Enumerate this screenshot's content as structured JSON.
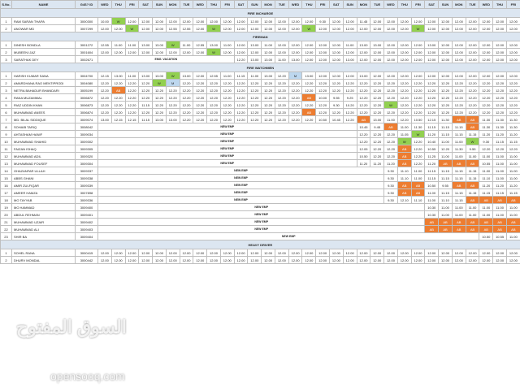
{
  "header": {
    "sno": "S.No.",
    "name": "NAME",
    "id": "G4S? ID",
    "days": [
      "WED",
      "THU",
      "FRI",
      "SAT",
      "SUN",
      "MON",
      "TUE",
      "WED",
      "THU",
      "FRI",
      "SAT",
      "SUN",
      "MON",
      "TUE",
      "WED",
      "THU",
      "FRI",
      "SAT",
      "SUN",
      "MON",
      "TUE",
      "WED",
      "THU",
      "FRI",
      "SAT",
      "SUN",
      "MON",
      "TUE",
      "WED",
      "THU",
      "FRI"
    ]
  },
  "sections": [
    {
      "title": "FIRE INCHARGE",
      "rows": [
        {
          "sno": "1",
          "name": "RAM SARAN THAPA",
          "id": "3000300",
          "cells": [
            "10.00",
            "W",
            "12.00",
            "12.00",
            "12.00",
            "12.00",
            "12.00",
            "12.00",
            "12.00",
            "12.00",
            "12.00",
            "12.00",
            "12.00",
            "12.00",
            "12.00",
            "12.00",
            "9.30",
            "12.00",
            "12.00",
            "11.45",
            "12.00",
            "12.00",
            "12.00",
            "12.00",
            "12.00",
            "12.00",
            "12.00",
            "12.00",
            "12.00",
            "12.00",
            "12.00"
          ]
        },
        {
          "sno": "2",
          "name": "ANOWAR MD",
          "id": "3007299",
          "cells": [
            "12.00",
            "12.00",
            "W",
            "12.00",
            "12.00",
            "12.55",
            "12.55",
            "12.00",
            "W",
            "12.00",
            "12.00",
            "12.00",
            "12.00",
            "12.00",
            "12.00",
            "W",
            "12.00",
            "12.00",
            "12.00",
            "12.00",
            "12.00",
            "12.00",
            "12.00",
            "W",
            "12.00",
            "12.00",
            "12.00",
            "12.00",
            "12.00",
            "12.00",
            "12.00"
          ]
        }
      ]
    },
    {
      "title": "FIREMAN",
      "rows": [
        {
          "sno": "1",
          "name": "DINESH BONDLA",
          "id": "3001272",
          "cells": [
            "12.55",
            "11.00",
            "11.00",
            "13.00",
            "13.00",
            "W",
            "11.00",
            "12.55",
            "13.00",
            "11.00",
            "12.00",
            "13.00",
            "11.00",
            "12.00",
            "12.00",
            "12.00",
            "12.00",
            "12.00",
            "11.00",
            "13.00",
            "13.00",
            "12.00",
            "12.00",
            "12.00",
            "13.00",
            "12.00",
            "12.00",
            "12.00",
            "12.00",
            "12.00",
            "12.00"
          ]
        },
        {
          "sno": "2",
          "name": "MUBEEN IJAZ",
          "id": "3001604",
          "cells": [
            "12.00",
            "12.00",
            "12.00",
            "12.00",
            "12.00",
            "12.00",
            "12.00",
            "12.00",
            "W",
            "12.00",
            "12.00",
            "12.00",
            "12.00",
            "12.00",
            "12.00",
            "12.00",
            "12.00",
            "12.00",
            "12.00",
            "12.00",
            "12.00",
            "12.00",
            "12.00",
            "12.00",
            "12.00",
            "12.00",
            "12.00",
            "12.00",
            "12.00",
            "12.00",
            "12.00"
          ]
        },
        {
          "sno": "3",
          "name": "SARATHAK DEY",
          "id": "3002671",
          "vacation": "EMG. VACATION",
          "cells": [
            "12.20",
            "13.00",
            "13.00",
            "11.00",
            "13.00",
            "12.00",
            "12.00",
            "12.00",
            "13.00",
            "12.00",
            "12.00",
            "12.00",
            "12.00",
            "12.00",
            "12.00",
            "12.00",
            "12.00",
            "12.00",
            "12.00",
            "12.00",
            "12.00"
          ]
        }
      ]
    },
    {
      "title": "FIRE WATCHMEN",
      "rows": [
        {
          "sno": "1",
          "name": "HARISH KUMAR SANA",
          "id": "3004700",
          "cells": [
            "12.15",
            "13.00",
            "11.00",
            "13.00",
            "13.00",
            "W",
            "13.00",
            "12.00",
            "12.55",
            "11.00",
            "11.15",
            "11.00",
            "13.00",
            "12.20",
            "M",
            "13.00",
            "12.00",
            "12.00",
            "12.00",
            "13.00",
            "12.00",
            "12.00",
            "12.00",
            "12.00",
            "12.00",
            "12.00",
            "12.00",
            "12.00",
            "12.00",
            "12.00",
            "12.00"
          ]
        },
        {
          "sno": "2",
          "name": "AMARDHANA RAO MENTIPRODI",
          "id": "3004080",
          "cells": [
            "12.20",
            "12.20",
            "12.20",
            "12.20",
            "W",
            "M",
            "12.20",
            "12.20",
            "12.20",
            "12.20",
            "12.20",
            "12.20",
            "12.20",
            "12.20",
            "12.20",
            "12.20",
            "12.20",
            "12.20",
            "12.20",
            "12.20",
            "12.20",
            "12.20",
            "12.20",
            "12.20",
            "12.20",
            "12.20",
            "12.20",
            "12.20",
            "12.20",
            "12.20",
            "12.20"
          ]
        },
        {
          "sno": "3",
          "name": "NETRA BAHADUR BHANDARI",
          "id": "3005199",
          "cells": [
            "12.20",
            "AB",
            "12.20",
            "12.20",
            "12.20",
            "12.20",
            "12.20",
            "12.20",
            "12.20",
            "12.20",
            "12.20",
            "12.20",
            "12.20",
            "12.20",
            "12.20",
            "12.20",
            "12.20",
            "12.20",
            "12.20",
            "12.20",
            "12.20",
            "12.20",
            "12.20",
            "12.20",
            "12.20",
            "12.20",
            "12.20",
            "12.20",
            "12.20",
            "12.20",
            "12.20"
          ]
        },
        {
          "sno": "4",
          "name": "RANA MUZAMMAL",
          "id": "3006872",
          "cells": [
            "12.20",
            "12.20",
            "12.20",
            "12.20",
            "12.20",
            "12.20",
            "12.20",
            "12.20",
            "12.20",
            "12.20",
            "12.20",
            "12.20",
            "12.20",
            "12.20",
            "12.20",
            "AB",
            "10.00",
            "9.55",
            "9.25",
            "12.20",
            "12.20",
            "12.20",
            "12.20",
            "12.20",
            "12.20",
            "12.20",
            "12.20",
            "12.20",
            "12.20",
            "12.20",
            "12.20"
          ]
        },
        {
          "sno": "5",
          "name": "RIAZ UDDIN KHAN",
          "id": "3006873",
          "cells": [
            "12.20",
            "12.20",
            "12.20",
            "11.15",
            "12.20",
            "12.20",
            "12.20",
            "12.20",
            "12.20",
            "12.20",
            "12.20",
            "12.20",
            "12.20",
            "12.20",
            "12.20",
            "12.20",
            "12.20",
            "9.30",
            "10.20",
            "12.20",
            "12.20",
            "W",
            "12.20",
            "12.20",
            "12.20",
            "12.20",
            "12.20",
            "12.20",
            "12.20",
            "12.20",
            "12.20"
          ]
        },
        {
          "sno": "6",
          "name": "MUHAMMAD ANEES",
          "id": "3006874",
          "cells": [
            "12.20",
            "12.20",
            "12.20",
            "12.20",
            "12.20",
            "12.20",
            "12.20",
            "12.20",
            "12.20",
            "12.20",
            "12.20",
            "12.20",
            "12.20",
            "12.20",
            "12.20",
            "AB",
            "12.20",
            "12.20",
            "12.20",
            "12.20",
            "12.20",
            "12.20",
            "12.20",
            "12.20",
            "12.20",
            "12.20",
            "12.20",
            "12.20",
            "12.20",
            "12.20",
            "12.20"
          ]
        },
        {
          "sno": "7",
          "name": "MD. BILAL SIDDIQUE",
          "id": "3009074",
          "cells": [
            "13.00",
            "12.15",
            "12.15",
            "11.15",
            "13.00",
            "13.00",
            "12.20",
            "12.20",
            "12.20",
            "12.20",
            "12.20",
            "12.20",
            "12.20",
            "12.20",
            "12.20",
            "12.20",
            "10.50",
            "10.45",
            "12.20",
            "AB",
            "13.00",
            "11.00",
            "12.20",
            "10.50",
            "12.15",
            "11.30",
            "AB",
            "AB",
            "11.30",
            "11.30",
            "11.30"
          ]
        }
      ]
    }
  ],
  "new_emp_rows": [
    {
      "sno": "8",
      "name": "SOHAIB TARIQ",
      "id": "3008042",
      "label": "NEW EMP",
      "cells": [
        "10.45",
        "9.45",
        "AB",
        "11.00",
        "11.30",
        "11.15",
        "11.15",
        "11.15",
        "AB",
        "11.30",
        "11.30",
        "11.30"
      ]
    },
    {
      "sno": "9",
      "name": "AHTASHAM HANIF",
      "id": "3009034",
      "label": "NEW EMP",
      "cells": [
        "12.20",
        "12.20",
        "12.20",
        "11.05",
        "W",
        "11.20",
        "11.15",
        "11.15",
        "11.15",
        "11.20",
        "11.20",
        "11.20"
      ]
    },
    {
      "sno": "10",
      "name": "MUHAMMAD SHAHID",
      "id": "3009302",
      "label": "NEW EMP",
      "cells": [
        "12.20",
        "12.20",
        "12.20",
        "W",
        "12.20",
        "10.40",
        "11.00",
        "11.00",
        "W",
        "9.30",
        "11.15",
        "11.15"
      ]
    },
    {
      "sno": "11",
      "name": "FAIZAN ISHAQ",
      "id": "3009305",
      "label": "NEW EMP",
      "cells": [
        "12.05",
        "12.20",
        "12.20",
        "AB",
        "12.20",
        "10.55",
        "12.20",
        "11.30",
        "9.55",
        "12.20",
        "12.20",
        "12.20"
      ]
    },
    {
      "sno": "12",
      "name": "MUHAMMAD ADIL",
      "id": "3009320",
      "label": "NEW EMP",
      "cells": [
        "10.50",
        "12.20",
        "12.20",
        "AB",
        "12.20",
        "11.25",
        "11.00",
        "11.00",
        "11.00",
        "11.00",
        "11.00",
        "11.00"
      ]
    },
    {
      "sno": "13",
      "name": "MUHAMMAD FOUSEF",
      "id": "3009304",
      "label": "NEW EMP",
      "cells": [
        "11.20",
        "11.20",
        "11.20",
        "AB",
        "12.20",
        "11.20",
        "AB",
        "AB",
        "AB",
        "10.55",
        "11.00",
        "11.00"
      ]
    },
    {
      "sno": "14",
      "name": "GHAZANFAR ULLAH",
      "id": "3009337",
      "label": "NEW EMP",
      "cells": [
        "9.30",
        "11.10",
        "11.00",
        "11.15",
        "11.15",
        "11.15",
        "11.15",
        "11.00",
        "11.00",
        "11.00"
      ]
    },
    {
      "sno": "15",
      "name": "ABBS GHANI",
      "id": "3009338",
      "label": "NEW EMP",
      "cells": [
        "9.30",
        "11.10",
        "11.00",
        "11.15",
        "11.15",
        "11.15",
        "11.15",
        "11.10",
        "11.00",
        "11.00"
      ]
    },
    {
      "sno": "16",
      "name": "AMIR ZULFIQAR",
      "id": "3009339",
      "label": "NEW EMP",
      "cells": [
        "9.30",
        "AB",
        "AB",
        "10.50",
        "9.55",
        "AB",
        "AB",
        "11.20",
        "11.20",
        "11.20"
      ]
    },
    {
      "sno": "17",
      "name": "AMEER HAMZA",
      "id": "3007898",
      "label": "NEW EMP",
      "cells": [
        "9.30",
        "AB",
        "AB",
        "11.00",
        "11.15",
        "11.15",
        "11.15",
        "11.15",
        "11.15",
        "11.15"
      ]
    },
    {
      "sno": "18",
      "name": "MO TAYYAB",
      "id": "3009336",
      "label": "NEW EMP",
      "cells": [
        "9.30",
        "12.10",
        "11.10",
        "11.00",
        "11.10",
        "11.15",
        "AB",
        "AB",
        "AB",
        "AB"
      ]
    },
    {
      "sno": "19",
      "name": "MO HAMMAD",
      "id": "3009400",
      "label": "NEW EMP",
      "cells": [
        "10.30",
        "11.00",
        "11.00",
        "11.00",
        "11.00",
        "11.00",
        "11.00"
      ]
    },
    {
      "sno": "20",
      "name": "ABDUL REHMAN",
      "id": "3009401",
      "label": "NEW EMP",
      "cells": [
        "10.30",
        "11.00",
        "11.00",
        "11.00",
        "11.00",
        "11.00",
        "11.00"
      ]
    },
    {
      "sno": "21",
      "name": "MUHAMMAD UZAIR",
      "id": "3009402",
      "label": "NEW EMP",
      "cells": [
        "AB",
        "AB",
        "AB",
        "AB",
        "AB",
        "AB",
        "AB"
      ]
    },
    {
      "sno": "22",
      "name": "MUHAMMAD ALI",
      "id": "3009403",
      "label": "NEW EMP",
      "cells": [
        "AB",
        "AB",
        "AB",
        "AB",
        "AB",
        "AB",
        "AB"
      ]
    },
    {
      "sno": "23",
      "name": "SHIR BA",
      "id": "3009404",
      "label": "NEW EMP",
      "cells": [
        "10.50",
        "10.55",
        "11.00"
      ]
    }
  ],
  "heavy": {
    "title": "HEAVY DRIVER",
    "rows": [
      {
        "sno": "1",
        "name": "SOHEL RANA",
        "id": "3000415",
        "cells": [
          "12.00",
          "12.00",
          "12.00",
          "12.00",
          "12.00",
          "12.00",
          "12.00",
          "12.00",
          "12.00",
          "12.00",
          "12.00",
          "12.00",
          "12.00",
          "12.00",
          "12.00",
          "12.00",
          "12.00",
          "12.00",
          "12.00",
          "12.00",
          "12.00",
          "12.00",
          "12.00",
          "12.00",
          "12.00",
          "12.00",
          "12.00",
          "12.00",
          "12.00",
          "12.00",
          "12.00"
        ]
      },
      {
        "sno": "2",
        "name": "DHURV MONDAL",
        "id": "3000442",
        "cells": [
          "12.00",
          "12.00",
          "12.00",
          "12.00",
          "12.00",
          "12.00",
          "12.00",
          "12.00",
          "12.00",
          "12.00",
          "12.00",
          "12.00",
          "12.00",
          "12.00",
          "12.00",
          "12.00",
          "12.00",
          "12.00",
          "12.00",
          "12.00",
          "12.00",
          "12.00",
          "12.00",
          "12.00",
          "12.00",
          "12.00",
          "12.00",
          "12.00",
          "12.00",
          "12.00",
          "12.00"
        ]
      }
    ]
  },
  "watermark": {
    "arabic": "السوق المفتوح",
    "latin": "opensooq.com"
  },
  "colors": {
    "header_bg": "#dce6f1",
    "weekoff_green": "#92d050",
    "absent_orange": "#ed7d31"
  }
}
